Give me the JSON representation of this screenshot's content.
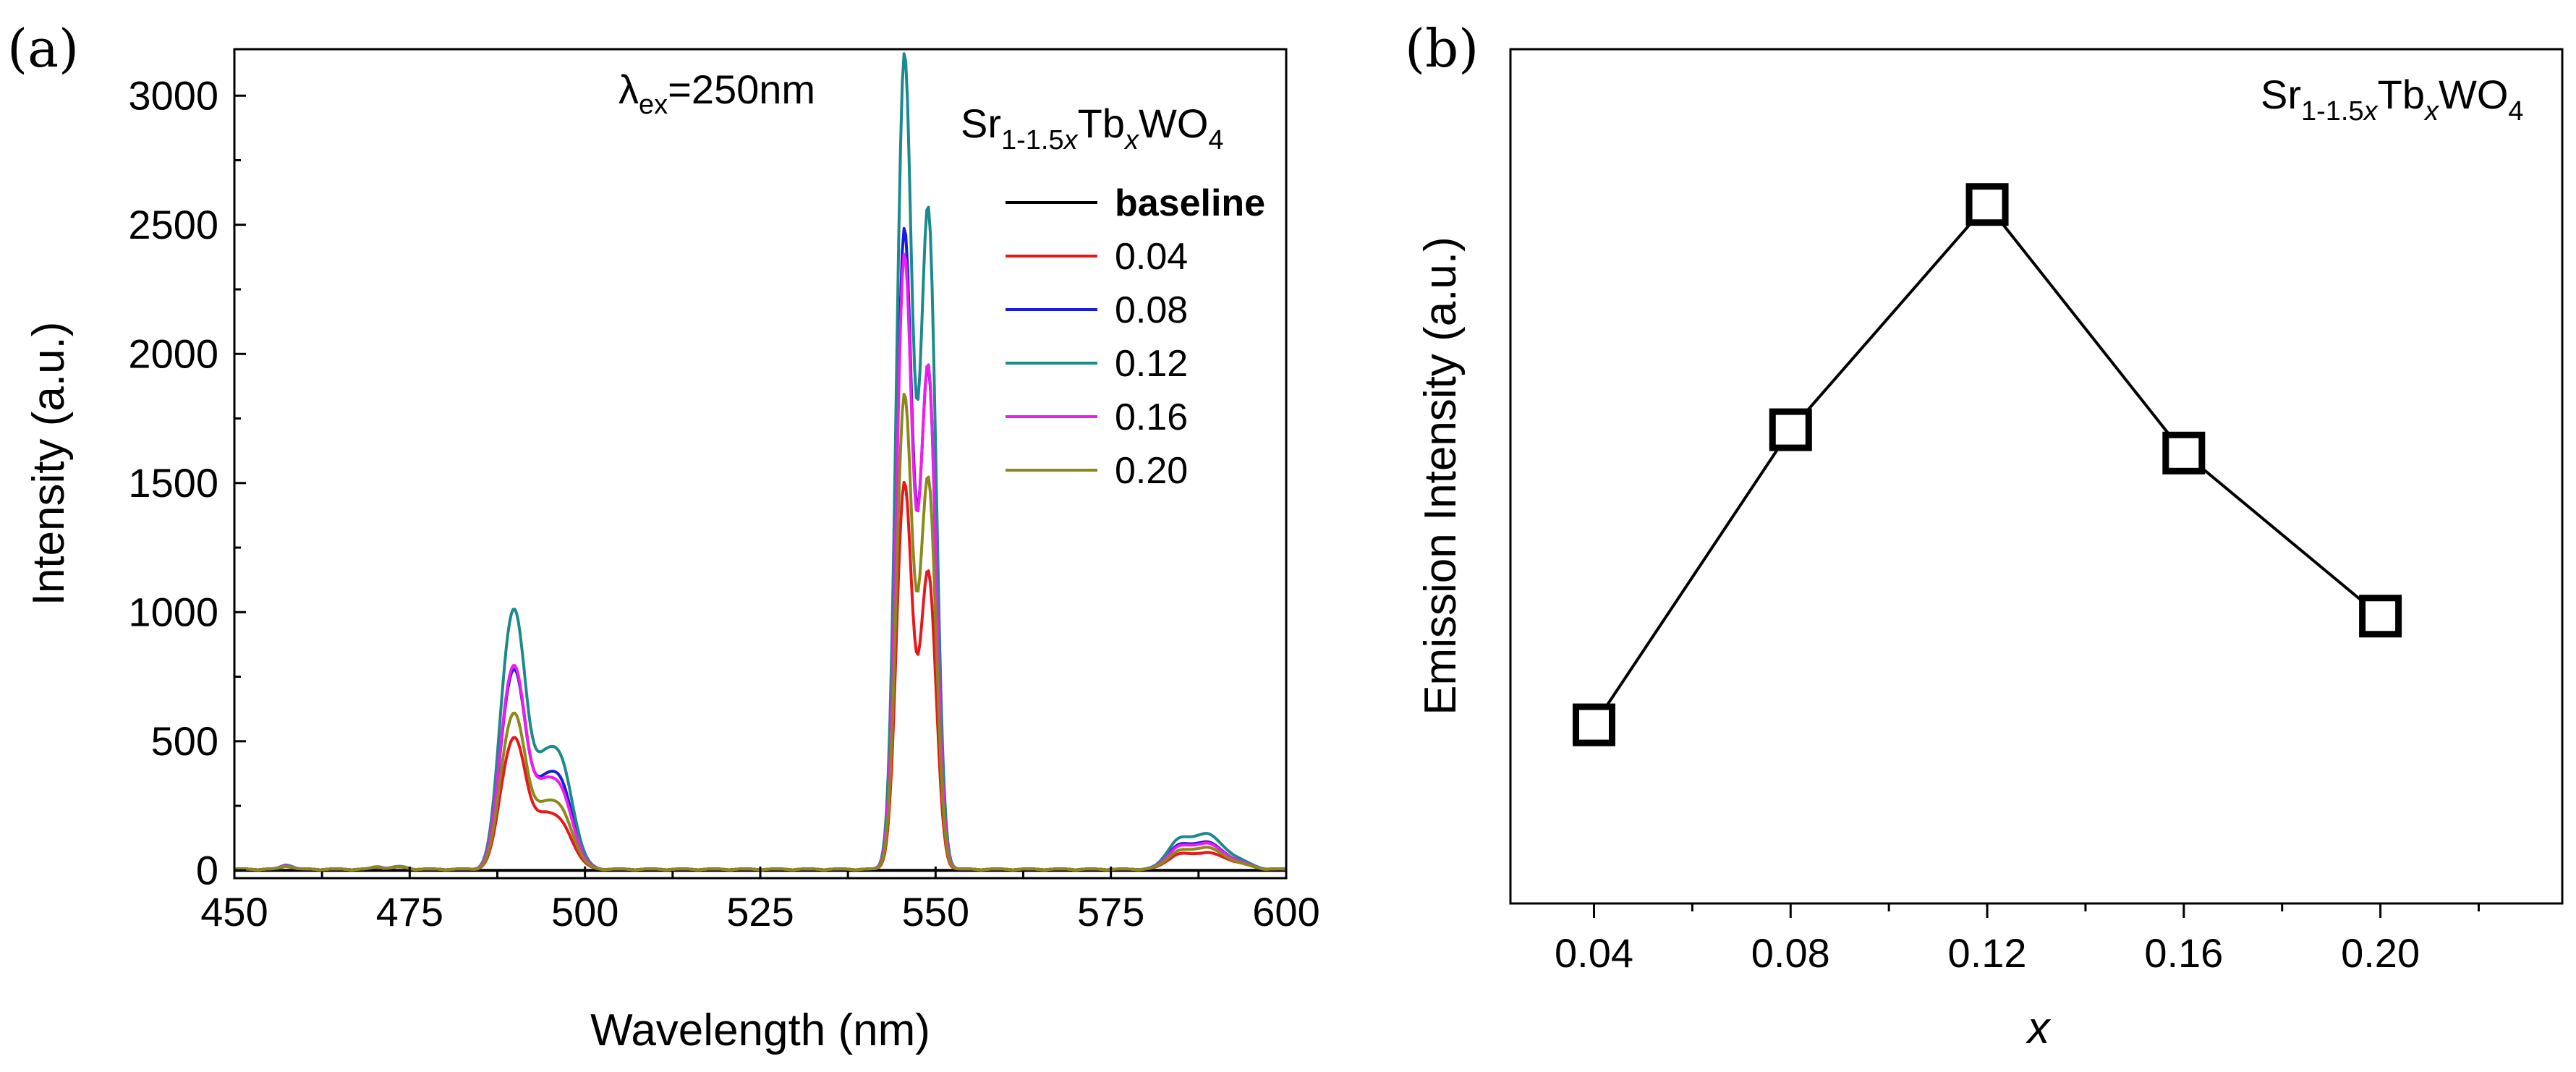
{
  "figure": {
    "panel_a_label": "(a)",
    "panel_b_label": "(b)"
  },
  "chart_data": [
    {
      "type": "line",
      "panel": "a",
      "xlabel": "Wavelength (nm)",
      "ylabel": "Intensity (a.u.)",
      "xlim": [
        450,
        600
      ],
      "ylim": [
        -30,
        3180
      ],
      "xticks": [
        450,
        475,
        500,
        525,
        550,
        575,
        600
      ],
      "yticks": [
        0,
        500,
        1000,
        1500,
        2000,
        2500,
        3000
      ],
      "annotation": {
        "lambda": "λ",
        "sub": "ex",
        "rest": "=250nm"
      },
      "formula": {
        "p1": "Sr",
        "s1a": "1-1.5",
        "s1b": "x",
        "p2": "Tb",
        "s2": "x",
        "p3": "WO",
        "s3": "4"
      },
      "series": [
        {
          "name": "baseline",
          "color": "#000000",
          "peaks": []
        },
        {
          "name": "0.04",
          "color": "#e8171c",
          "peaks": [
            [
              457.5,
              12,
              0.8
            ],
            [
              470.5,
              8,
              0.8
            ],
            [
              473.5,
              8,
              1.1
            ],
            [
              488.5,
              230,
              1.3
            ],
            [
              490.4,
              400,
              1.4
            ],
            [
              493.6,
              150,
              1.5
            ],
            [
              496.5,
              170,
              1.8
            ],
            [
              545.5,
              1440,
              1.1
            ],
            [
              549.0,
              1090,
              1.1
            ],
            [
              547.3,
              130,
              1.3
            ],
            [
              584.5,
              50,
              1.6
            ],
            [
              588.5,
              60,
              2.0
            ],
            [
              592.5,
              25,
              2.0
            ]
          ]
        },
        {
          "name": "0.08",
          "color": "#1a1ade",
          "peaks": [
            [
              457.5,
              15,
              0.8
            ],
            [
              470.5,
              8,
              0.8
            ],
            [
              473.5,
              8,
              1.1
            ],
            [
              488.5,
              360,
              1.3
            ],
            [
              490.4,
              600,
              1.4
            ],
            [
              493.6,
              230,
              1.5
            ],
            [
              496.5,
              320,
              1.8
            ],
            [
              545.5,
              2380,
              1.1
            ],
            [
              549.0,
              1830,
              1.1
            ],
            [
              547.3,
              230,
              1.3
            ],
            [
              584.5,
              80,
              1.6
            ],
            [
              588.5,
              100,
              2.0
            ],
            [
              592.5,
              30,
              2.0
            ]
          ]
        },
        {
          "name": "0.12",
          "color": "#1a8a8a",
          "peaks": [
            [
              457.5,
              18,
              0.8
            ],
            [
              470.5,
              10,
              0.8
            ],
            [
              473.5,
              10,
              1.1
            ],
            [
              488.5,
              470,
              1.3
            ],
            [
              490.4,
              780,
              1.4
            ],
            [
              493.6,
              290,
              1.5
            ],
            [
              496.5,
              400,
              1.8
            ],
            [
              545.5,
              3030,
              1.1
            ],
            [
              549.0,
              2420,
              1.1
            ],
            [
              547.3,
              290,
              1.3
            ],
            [
              584.5,
              100,
              1.6
            ],
            [
              588.5,
              130,
              2.0
            ],
            [
              592.5,
              40,
              2.0
            ]
          ]
        },
        {
          "name": "0.16",
          "color": "#ee1cee",
          "peaks": [
            [
              457.5,
              15,
              0.8
            ],
            [
              470.5,
              9,
              0.8
            ],
            [
              473.5,
              9,
              1.1
            ],
            [
              488.5,
              370,
              1.3
            ],
            [
              490.4,
              610,
              1.4
            ],
            [
              493.6,
              230,
              1.5
            ],
            [
              496.5,
              290,
              1.8
            ],
            [
              545.5,
              2280,
              1.1
            ],
            [
              549.0,
              1840,
              1.1
            ],
            [
              547.3,
              230,
              1.3
            ],
            [
              584.5,
              75,
              1.6
            ],
            [
              588.5,
              95,
              2.0
            ],
            [
              592.5,
              30,
              2.0
            ]
          ]
        },
        {
          "name": "0.20",
          "color": "#8a8a1a",
          "peaks": [
            [
              457.5,
              12,
              0.8
            ],
            [
              470.5,
              8,
              0.8
            ],
            [
              473.5,
              8,
              1.1
            ],
            [
              488.5,
              280,
              1.3
            ],
            [
              490.4,
              470,
              1.4
            ],
            [
              493.6,
              170,
              1.5
            ],
            [
              496.5,
              220,
              1.8
            ],
            [
              545.5,
              1760,
              1.1
            ],
            [
              549.0,
              1430,
              1.1
            ],
            [
              547.3,
              180,
              1.3
            ],
            [
              584.5,
              60,
              1.6
            ],
            [
              588.5,
              80,
              2.0
            ],
            [
              592.5,
              25,
              2.0
            ]
          ]
        }
      ]
    },
    {
      "type": "line",
      "panel": "b",
      "xlabel": "x",
      "ylabel": "Emission Intensity (a.u.)",
      "xlim": [
        0.023,
        0.237
      ],
      "ylim": [
        -5,
        105
      ],
      "xticks": [
        "0.04",
        "0.08",
        "0.12",
        "0.16",
        "0.20"
      ],
      "formula": {
        "p1": "Sr",
        "s1a": "1-1.5",
        "s1b": "x",
        "p2": "Tb",
        "s2": "x",
        "p3": "WO",
        "s3": "4"
      },
      "x": [
        0.04,
        0.08,
        0.12,
        0.16,
        0.2
      ],
      "values": [
        18,
        56,
        85,
        53,
        32
      ]
    }
  ]
}
